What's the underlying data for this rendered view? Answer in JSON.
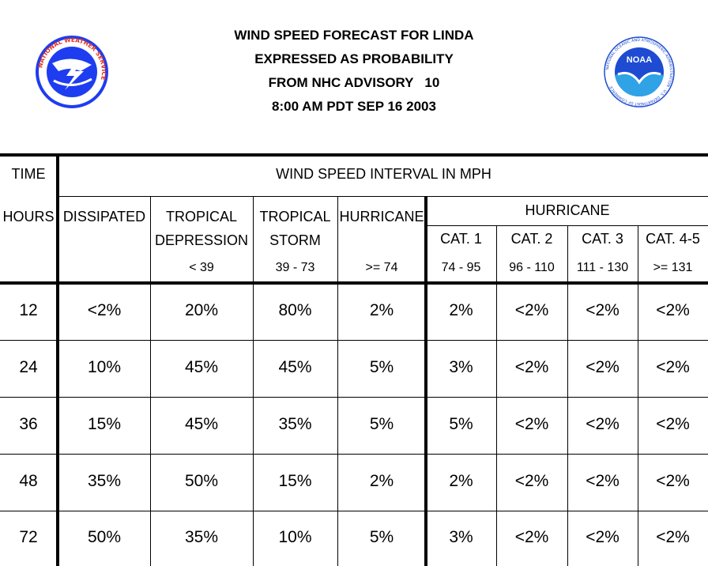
{
  "header": {
    "title_lines": [
      "WIND SPEED FORECAST FOR LINDA",
      "EXPRESSED AS PROBABILITY",
      "FROM NHC ADVISORY   10",
      "8:00 AM PDT SEP 16 2003"
    ],
    "left_logo": {
      "icon": "national-weather-service-logo",
      "text": "NATIONAL WEATHER SERVICE"
    },
    "right_logo": {
      "icon": "noaa-logo",
      "text": "NOAA",
      "ring_text": "NATIONAL OCEANIC AND ATMOSPHERIC ADMINISTRATION · U.S. DEPARTMENT OF COMMERCE"
    }
  },
  "table": {
    "time_label": "TIME",
    "interval_label": "WIND SPEED INTERVAL IN MPH",
    "hours_label": "HOURS",
    "hurricane_group_label": "HURRICANE",
    "columns": [
      {
        "name": "DISSIPATED",
        "name2": "",
        "range": ""
      },
      {
        "name": "TROPICAL",
        "name2": "DEPRESSION",
        "range": "< 39"
      },
      {
        "name": "TROPICAL",
        "name2": "STORM",
        "range": "39 - 73"
      },
      {
        "name": "HURRICANE",
        "name2": "",
        "range": ">= 74"
      },
      {
        "name": "CAT. 1",
        "name2": "",
        "range": "74 - 95"
      },
      {
        "name": "CAT. 2",
        "name2": "",
        "range": "96 - 110"
      },
      {
        "name": "CAT. 3",
        "name2": "",
        "range": "111 - 130"
      },
      {
        "name": "CAT. 4-5",
        "name2": "",
        "range": ">= 131"
      }
    ],
    "rows": [
      {
        "hours": "12",
        "values": [
          "<2%",
          "20%",
          "80%",
          "2%",
          "2%",
          "<2%",
          "<2%",
          "<2%"
        ]
      },
      {
        "hours": "24",
        "values": [
          "10%",
          "45%",
          "45%",
          "5%",
          "3%",
          "<2%",
          "<2%",
          "<2%"
        ]
      },
      {
        "hours": "36",
        "values": [
          "15%",
          "45%",
          "35%",
          "5%",
          "5%",
          "<2%",
          "<2%",
          "<2%"
        ]
      },
      {
        "hours": "48",
        "values": [
          "35%",
          "50%",
          "15%",
          "2%",
          "2%",
          "<2%",
          "<2%",
          "<2%"
        ]
      },
      {
        "hours": "72",
        "values": [
          "50%",
          "35%",
          "10%",
          "5%",
          "3%",
          "<2%",
          "<2%",
          "<2%"
        ]
      }
    ]
  },
  "colors": {
    "nws_blue": "#1e3cf0",
    "noaa_blue": "#1e4bd2",
    "noaa_light": "#2fa3e6",
    "nws_red": "#e0301e"
  }
}
